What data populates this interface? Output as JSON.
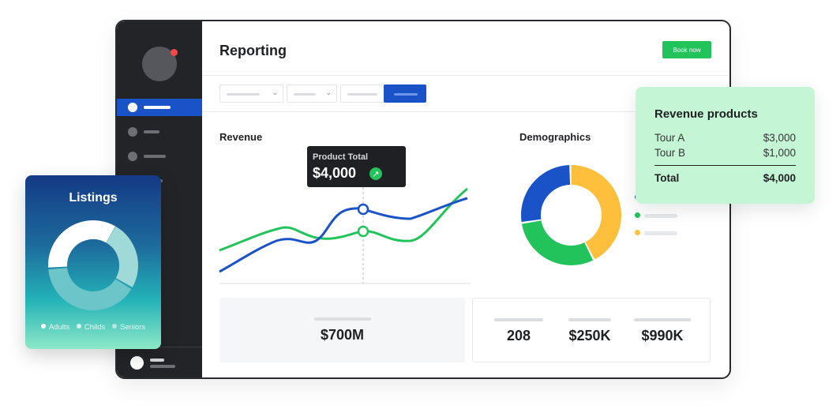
{
  "header": {
    "title": "Reporting",
    "book_label": "Book now"
  },
  "revenue_section": {
    "title": "Revenue",
    "tooltip": {
      "label": "Product Total",
      "value": "$4,000"
    }
  },
  "demographics_section": {
    "title": "Demographics"
  },
  "stats": {
    "card_a_value": "$700M",
    "card_b_values": [
      "208",
      "$250K",
      "$990K"
    ]
  },
  "listings": {
    "title": "Listings",
    "legend": [
      "Adults",
      "Childs",
      "Seniors"
    ]
  },
  "revenue_products": {
    "title": "Revenue products",
    "items": [
      {
        "name": "Tour A",
        "value": "$3,000"
      },
      {
        "name": "Tour B",
        "value": "$1,000"
      }
    ],
    "total_label": "Total",
    "total_value": "$4,000"
  },
  "colors": {
    "blue": "#1a53c7",
    "green": "#23c35c",
    "yellow": "#fdbf3c",
    "dark": "#232428",
    "mint": "#c4f5d5"
  }
}
